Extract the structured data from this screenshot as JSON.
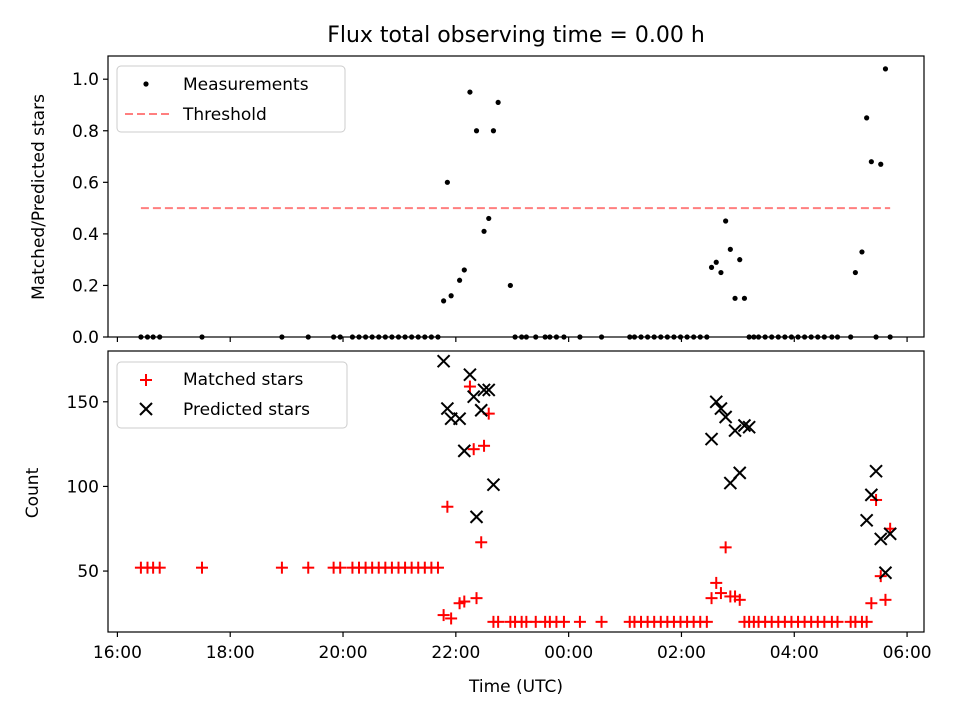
{
  "title": "Flux total observing time = 0.00 h",
  "chart_data": [
    {
      "type": "scatter",
      "ylabel": "Matched/Predicted stars",
      "ylim": [
        0,
        1.09
      ],
      "yticks": [
        "0.0",
        "0.2",
        "0.4",
        "0.6",
        "0.8",
        "1.0"
      ],
      "ytick_values": [
        0,
        0.2,
        0.4,
        0.6,
        0.8,
        1.0
      ],
      "legend_position": "upper-left",
      "series": [
        {
          "name": "Measurements",
          "marker": "dot",
          "color": "#000000",
          "x": [
            "16:25",
            "16:32",
            "16:38",
            "16:45",
            "17:30",
            "18:55",
            "19:23",
            "19:50",
            "19:57",
            "20:10",
            "20:17",
            "20:24",
            "20:31",
            "20:38",
            "20:45",
            "20:52",
            "20:59",
            "21:06",
            "21:13",
            "21:20",
            "21:27",
            "21:34",
            "21:41",
            "21:47",
            "21:51",
            "21:55",
            "22:04",
            "22:09",
            "22:15",
            "22:22",
            "22:30",
            "22:35"
          ],
          "y": [
            0,
            0,
            0,
            0,
            0,
            0,
            0,
            0,
            0,
            0,
            0,
            0,
            0,
            0,
            0,
            0,
            0,
            0,
            0,
            0,
            0,
            0,
            0,
            0.14,
            0.6,
            0.16,
            0.22,
            0.26,
            0.95,
            0.8,
            0.41,
            0.46
          ],
          "x2": [
            "22:40",
            "22:45",
            "22:58",
            "23:03",
            "23:10",
            "23:15",
            "23:25",
            "23:35",
            "23:40",
            "23:47",
            "23:55",
            "00:12",
            "00:35",
            "01:05",
            "01:10",
            "01:17",
            "01:24",
            "01:31",
            "01:38",
            "01:45",
            "01:52",
            "01:59",
            "02:06",
            "02:13",
            "02:20",
            "02:27",
            "02:32",
            "02:37",
            "02:42",
            "02:47",
            "02:52",
            "02:57",
            "03:02",
            "03:07",
            "03:12",
            "03:17",
            "03:22",
            "03:29",
            "03:36",
            "03:43",
            "03:50",
            "03:57",
            "04:04",
            "04:11",
            "04:18",
            "04:25",
            "04:32",
            "04:40",
            "04:46",
            "05:00",
            "05:05",
            "05:12",
            "05:17",
            "05:22",
            "05:27",
            "05:32",
            "05:37",
            "05:42"
          ],
          "y2": [
            0.8,
            0.91,
            0.2,
            0,
            0,
            0,
            0,
            0,
            0,
            0,
            0,
            0,
            0,
            0,
            0,
            0,
            0,
            0,
            0,
            0,
            0,
            0,
            0,
            0,
            0,
            0,
            0.27,
            0.29,
            0.25,
            0.45,
            0.34,
            0.15,
            0.3,
            0.15,
            0,
            0,
            0,
            0,
            0,
            0,
            0,
            0,
            0,
            0,
            0,
            0,
            0,
            0,
            0,
            0,
            0.25,
            0.33,
            0.85,
            0.68,
            0,
            0.67,
            1.04,
            0
          ]
        },
        {
          "name": "Threshold",
          "marker": "dashed-line",
          "color": "#ff7f7f",
          "x": [
            "16:25",
            "05:42"
          ],
          "y": [
            0.5,
            0.5
          ]
        }
      ]
    },
    {
      "type": "scatter",
      "xlabel": "Time (UTC)",
      "ylabel": "Count",
      "ylim": [
        14,
        180
      ],
      "yticks": [
        "50",
        "100",
        "150"
      ],
      "ytick_values": [
        50,
        100,
        150
      ],
      "xlim": [
        "15:50",
        "06:18"
      ],
      "xticks": [
        "16:00",
        "18:00",
        "20:00",
        "22:00",
        "00:00",
        "02:00",
        "04:00",
        "06:00"
      ],
      "legend_position": "upper-left",
      "series": [
        {
          "name": "Matched stars",
          "marker": "plus",
          "color": "#ff0000",
          "x": [
            "16:25",
            "16:32",
            "16:38",
            "16:45",
            "17:30",
            "18:55",
            "19:23",
            "19:50",
            "19:57",
            "20:10",
            "20:17",
            "20:24",
            "20:31",
            "20:38",
            "20:45",
            "20:52",
            "20:59",
            "21:06",
            "21:13",
            "21:20",
            "21:27",
            "21:34",
            "21:41",
            "21:47",
            "21:51",
            "21:55",
            "22:04",
            "22:09",
            "22:15",
            "22:19",
            "22:22",
            "22:27",
            "22:30",
            "22:35",
            "22:40",
            "22:45",
            "22:58",
            "23:03",
            "23:10",
            "23:15",
            "23:25",
            "23:35",
            "23:40",
            "23:47",
            "23:55",
            "00:12",
            "00:35",
            "01:05",
            "01:10",
            "01:17",
            "01:24",
            "01:31",
            "01:38",
            "01:45",
            "01:52",
            "01:59",
            "02:06",
            "02:13",
            "02:20",
            "02:27",
            "02:32",
            "02:37",
            "02:42",
            "02:47",
            "02:52",
            "02:57",
            "03:02",
            "03:07",
            "03:12",
            "03:17",
            "03:22",
            "03:29",
            "03:36",
            "03:43",
            "03:50",
            "03:57",
            "04:04",
            "04:11",
            "04:18",
            "04:25",
            "04:32",
            "04:40",
            "04:46",
            "05:00",
            "05:05",
            "05:12",
            "05:17",
            "05:22",
            "05:27",
            "05:32",
            "05:37",
            "05:42"
          ],
          "y": [
            52,
            52,
            52,
            52,
            52,
            52,
            52,
            52,
            52,
            52,
            52,
            52,
            52,
            52,
            52,
            52,
            52,
            52,
            52,
            52,
            52,
            52,
            52,
            24,
            88,
            22,
            31,
            32,
            159,
            122,
            34,
            67,
            124,
            143,
            20,
            20,
            20,
            20,
            20,
            20,
            20,
            20,
            20,
            20,
            20,
            20,
            20,
            20,
            20,
            20,
            20,
            20,
            20,
            20,
            20,
            20,
            20,
            20,
            20,
            20,
            34,
            43,
            37,
            64,
            35,
            35,
            33,
            20,
            20,
            20,
            20,
            20,
            20,
            20,
            20,
            20,
            20,
            20,
            20,
            20,
            20,
            20,
            20,
            20,
            20,
            20,
            20,
            31,
            92,
            47,
            33,
            75
          ]
        },
        {
          "name": "Predicted stars",
          "marker": "x",
          "color": "#000000",
          "x": [
            "21:47",
            "21:51",
            "21:55",
            "22:04",
            "22:09",
            "22:15",
            "22:19",
            "22:22",
            "22:27",
            "22:30",
            "22:35",
            "22:40",
            "02:32",
            "02:37",
            "02:42",
            "02:47",
            "02:52",
            "02:57",
            "03:02",
            "03:07",
            "03:12",
            "05:17",
            "05:22",
            "05:27",
            "05:32",
            "05:37",
            "05:42"
          ],
          "y": [
            174,
            146,
            140,
            140,
            121,
            166,
            153,
            82,
            145,
            157,
            157,
            101,
            128,
            150,
            146,
            141,
            102,
            133,
            108,
            136,
            135,
            80,
            95,
            109,
            69,
            49,
            72
          ]
        }
      ]
    }
  ]
}
